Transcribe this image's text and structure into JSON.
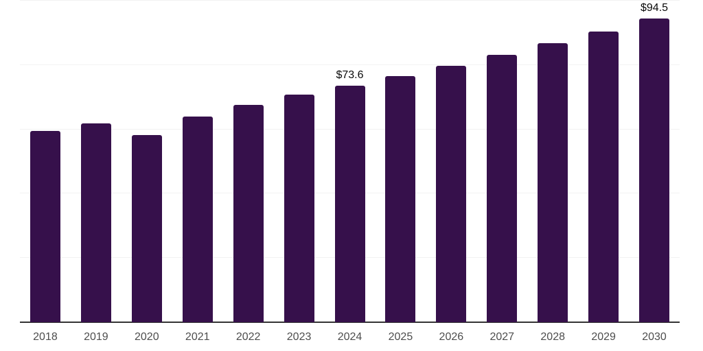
{
  "chart_data": {
    "type": "bar",
    "title": "",
    "xlabel": "",
    "ylabel": "",
    "categories": [
      "2018",
      "2019",
      "2020",
      "2021",
      "2022",
      "2023",
      "2024",
      "2025",
      "2026",
      "2027",
      "2028",
      "2029",
      "2030"
    ],
    "values": [
      59.5,
      61.9,
      58.3,
      63.9,
      67.6,
      70.7,
      73.6,
      76.6,
      79.7,
      83.1,
      86.8,
      90.4,
      94.5
    ],
    "data_labels": {
      "2024": "$73.6",
      "2030": "$94.5"
    },
    "ylim": [
      0,
      100
    ],
    "gridline_step": 20,
    "grid": "horizontal",
    "legend": "none",
    "colors": {
      "bar": "#36104b",
      "grid": "#f2f2f2",
      "axis": "#333333",
      "tick_label": "#4d4d4d",
      "data_label": "#0a0a0a",
      "background": "#ffffff"
    }
  }
}
